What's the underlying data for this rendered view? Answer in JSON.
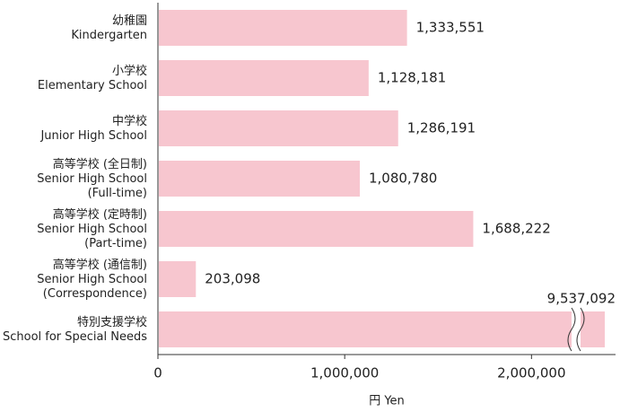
{
  "chart_data": {
    "type": "bar",
    "orientation": "horizontal",
    "categories": [
      "幼稚園\nKindergarten",
      "小学校\nElementary School",
      "中学校\nJunior High School",
      "高等学校 (全日制)\nSenior High School\n(Full-time)",
      "高等学校 (定時制)\nSenior High School\n(Part-time)",
      "高等学校 (通信制)\nSenior High School\n(Correspondence)",
      "特別支援学校\nSchool for Special Needs"
    ],
    "values": [
      1333551,
      1128181,
      1286191,
      1080780,
      1688222,
      203098,
      9537092
    ],
    "value_labels": [
      "1,333,551",
      "1,128,181",
      "1,286,191",
      "1,080,780",
      "1,688,222",
      "203,098",
      "9,537,092"
    ],
    "color": "#f7c6cf",
    "xlim": [
      0,
      2450000
    ],
    "xticks": [
      0,
      {
        "value": 1000000,
        "label": "1,000,000"
      },
      {
        "value": 2000000,
        "label": "2,000,000"
      }
    ],
    "xlabel": "円 Yen",
    "axis_break": true
  }
}
